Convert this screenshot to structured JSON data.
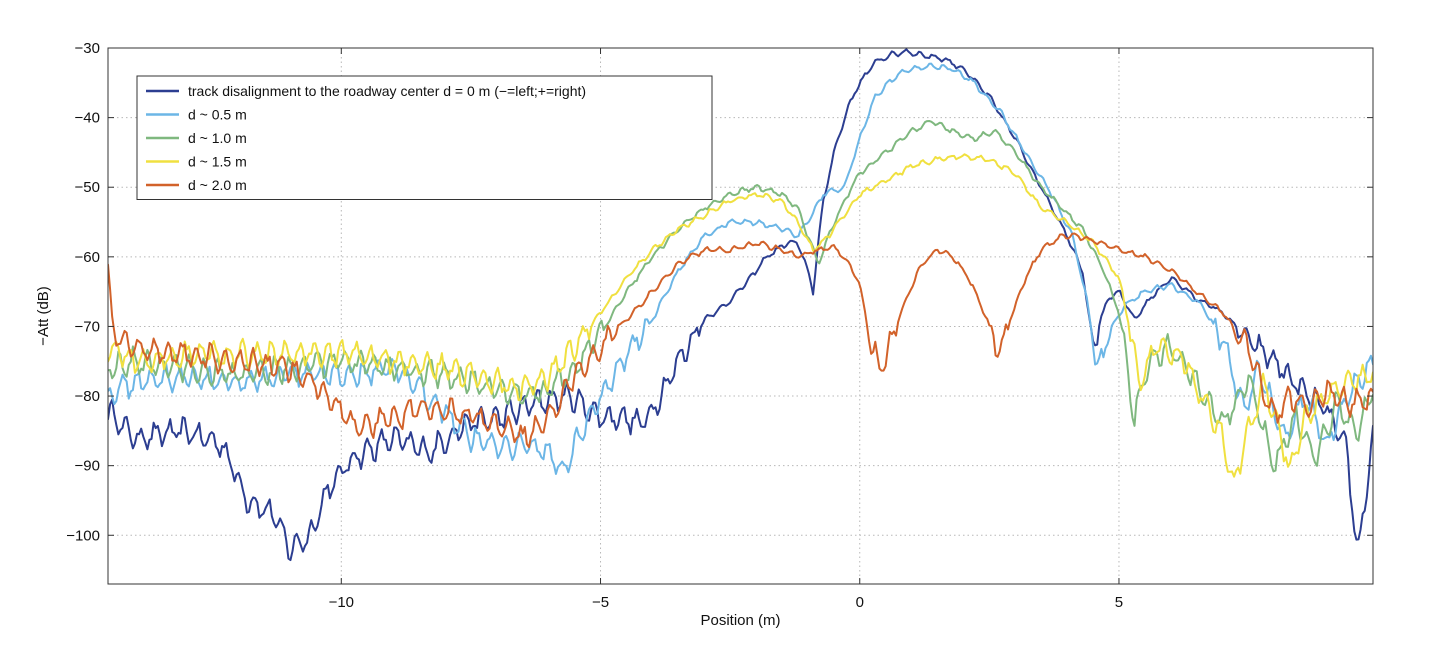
{
  "chart_data": {
    "type": "line",
    "title": "",
    "xlabel": "Position (m)",
    "ylabel": "−Att (dB)",
    "xlim": [
      -14.5,
      9.9
    ],
    "ylim": [
      -107,
      -30
    ],
    "xticks": [
      -10,
      -5,
      0,
      5
    ],
    "yticks": [
      -30,
      -40,
      -50,
      -60,
      -70,
      -80,
      -90,
      -100
    ],
    "xtick_labels": [
      "−10",
      "−5",
      "0",
      "5"
    ],
    "ytick_labels": [
      "−30",
      "−40",
      "−50",
      "−60",
      "−70",
      "−80",
      "−90",
      "−100"
    ],
    "grid": true,
    "legend_position": "top-left",
    "series": [
      {
        "name": "track disalignment to the roadway center  d = 0 m (−=left;+=right)",
        "color": "#2c3e91",
        "points": [
          [
            -14.5,
            -82
          ],
          [
            -14,
            -86
          ],
          [
            -13,
            -85
          ],
          [
            -12.3,
            -87
          ],
          [
            -11.8,
            -95
          ],
          [
            -11.3,
            -97
          ],
          [
            -11,
            -102
          ],
          [
            -10.6,
            -100
          ],
          [
            -10.3,
            -94
          ],
          [
            -9.8,
            -89
          ],
          [
            -9,
            -86
          ],
          [
            -8.3,
            -88
          ],
          [
            -7.6,
            -84
          ],
          [
            -6.9,
            -83
          ],
          [
            -6.3,
            -81
          ],
          [
            -5.6,
            -80
          ],
          [
            -5,
            -83
          ],
          [
            -4.6,
            -83
          ],
          [
            -4.2,
            -84
          ],
          [
            -4,
            -82
          ],
          [
            -3.5,
            -75
          ],
          [
            -3,
            -69
          ],
          [
            -2.6,
            -67
          ],
          [
            -2.1,
            -63
          ],
          [
            -1.8,
            -60
          ],
          [
            -1.4,
            -58
          ],
          [
            -1.2,
            -58
          ],
          [
            -1,
            -62
          ],
          [
            -0.9,
            -65
          ],
          [
            -0.8,
            -58
          ],
          [
            -0.7,
            -52
          ],
          [
            -0.5,
            -45
          ],
          [
            -0.2,
            -38
          ],
          [
            0,
            -35
          ],
          [
            0.3,
            -32
          ],
          [
            0.6,
            -31
          ],
          [
            0.9,
            -30.5
          ],
          [
            1.2,
            -31
          ],
          [
            1.6,
            -31.5
          ],
          [
            2,
            -33
          ],
          [
            2.5,
            -37
          ],
          [
            3,
            -43
          ],
          [
            3.5,
            -50
          ],
          [
            4,
            -57
          ],
          [
            4.3,
            -62
          ],
          [
            4.5,
            -73
          ],
          [
            4.6,
            -70
          ],
          [
            4.8,
            -66
          ],
          [
            5,
            -65
          ],
          [
            5.3,
            -69
          ],
          [
            5.6,
            -66
          ],
          [
            6,
            -63
          ],
          [
            6.5,
            -66
          ],
          [
            7,
            -68
          ],
          [
            7.5,
            -72
          ],
          [
            8,
            -75
          ],
          [
            8.5,
            -79
          ],
          [
            9,
            -82
          ],
          [
            9.4,
            -88
          ],
          [
            9.6,
            -103
          ],
          [
            9.9,
            -86
          ]
        ]
      },
      {
        "name": "d ~ 0.5 m",
        "color": "#6cb6e6",
        "points": [
          [
            -14.5,
            -80
          ],
          [
            -14,
            -78
          ],
          [
            -13,
            -77
          ],
          [
            -12,
            -78
          ],
          [
            -11,
            -77
          ],
          [
            -10,
            -77
          ],
          [
            -9,
            -76
          ],
          [
            -8.5,
            -79
          ],
          [
            -8,
            -82
          ],
          [
            -7.5,
            -86
          ],
          [
            -7,
            -87
          ],
          [
            -6.5,
            -87
          ],
          [
            -6,
            -88
          ],
          [
            -5.7,
            -91
          ],
          [
            -5.5,
            -87
          ],
          [
            -5,
            -80
          ],
          [
            -4.5,
            -74
          ],
          [
            -4,
            -69
          ],
          [
            -3.5,
            -62
          ],
          [
            -3,
            -57
          ],
          [
            -2.5,
            -55
          ],
          [
            -2,
            -55
          ],
          [
            -1.5,
            -56
          ],
          [
            -1.2,
            -57
          ],
          [
            -1,
            -55
          ],
          [
            -0.7,
            -51
          ],
          [
            -0.3,
            -50
          ],
          [
            0,
            -43
          ],
          [
            0.3,
            -37
          ],
          [
            0.7,
            -34
          ],
          [
            1,
            -33
          ],
          [
            1.4,
            -32.5
          ],
          [
            1.8,
            -33
          ],
          [
            2.2,
            -35
          ],
          [
            2.7,
            -39
          ],
          [
            3.2,
            -45
          ],
          [
            3.7,
            -51
          ],
          [
            4.1,
            -57
          ],
          [
            4.4,
            -67
          ],
          [
            4.6,
            -77
          ],
          [
            4.8,
            -71
          ],
          [
            5.1,
            -67
          ],
          [
            5.5,
            -65
          ],
          [
            6,
            -64
          ],
          [
            6.6,
            -67
          ],
          [
            7,
            -72
          ],
          [
            7.4,
            -82
          ],
          [
            7.7,
            -76
          ],
          [
            8.2,
            -86
          ],
          [
            8.6,
            -80
          ],
          [
            9,
            -87
          ],
          [
            9.4,
            -80
          ],
          [
            9.9,
            -75
          ]
        ]
      },
      {
        "name": "d ~ 1.0 m",
        "color": "#7fb87f",
        "points": [
          [
            -14.5,
            -76
          ],
          [
            -14,
            -75
          ],
          [
            -13,
            -76
          ],
          [
            -12,
            -77
          ],
          [
            -11,
            -76
          ],
          [
            -10,
            -75
          ],
          [
            -9,
            -76
          ],
          [
            -8,
            -77
          ],
          [
            -7,
            -79
          ],
          [
            -6.5,
            -80
          ],
          [
            -6,
            -79
          ],
          [
            -5.5,
            -76
          ],
          [
            -5,
            -71
          ],
          [
            -4.5,
            -65
          ],
          [
            -4,
            -60
          ],
          [
            -3.5,
            -56
          ],
          [
            -3,
            -53
          ],
          [
            -2.5,
            -51
          ],
          [
            -2,
            -50
          ],
          [
            -1.5,
            -51
          ],
          [
            -1.2,
            -53
          ],
          [
            -1,
            -57
          ],
          [
            -0.8,
            -61
          ],
          [
            -0.6,
            -57
          ],
          [
            -0.3,
            -52
          ],
          [
            0,
            -48
          ],
          [
            0.5,
            -45
          ],
          [
            1,
            -42
          ],
          [
            1.4,
            -40.5
          ],
          [
            1.8,
            -42
          ],
          [
            2.2,
            -43
          ],
          [
            2.6,
            -42
          ],
          [
            3,
            -45
          ],
          [
            3.5,
            -50
          ],
          [
            3.9,
            -53
          ],
          [
            4.3,
            -56
          ],
          [
            4.7,
            -62
          ],
          [
            5,
            -68
          ],
          [
            5.3,
            -83
          ],
          [
            5.6,
            -75
          ],
          [
            6,
            -73
          ],
          [
            6.5,
            -78
          ],
          [
            7,
            -84
          ],
          [
            7.5,
            -77
          ],
          [
            8,
            -90
          ],
          [
            8.4,
            -83
          ],
          [
            8.8,
            -89
          ],
          [
            9.2,
            -81
          ],
          [
            9.6,
            -85
          ],
          [
            9.9,
            -79
          ]
        ]
      },
      {
        "name": "d ~ 1.5 m",
        "color": "#f0e040",
        "points": [
          [
            -14.5,
            -73
          ],
          [
            -14,
            -75
          ],
          [
            -13,
            -74
          ],
          [
            -12,
            -74
          ],
          [
            -11,
            -74
          ],
          [
            -10,
            -74
          ],
          [
            -9,
            -75
          ],
          [
            -8,
            -76
          ],
          [
            -7,
            -78
          ],
          [
            -6.4,
            -79
          ],
          [
            -6,
            -77
          ],
          [
            -5.5,
            -73
          ],
          [
            -5,
            -68
          ],
          [
            -4.5,
            -63
          ],
          [
            -4,
            -59
          ],
          [
            -3.5,
            -56
          ],
          [
            -3,
            -54
          ],
          [
            -2.5,
            -52
          ],
          [
            -2,
            -51
          ],
          [
            -1.5,
            -52
          ],
          [
            -1.2,
            -55
          ],
          [
            -0.9,
            -59
          ],
          [
            -0.6,
            -57
          ],
          [
            -0.3,
            -54
          ],
          [
            0,
            -51
          ],
          [
            0.5,
            -49
          ],
          [
            1,
            -47
          ],
          [
            1.5,
            -46
          ],
          [
            2,
            -45.5
          ],
          [
            2.5,
            -46
          ],
          [
            3,
            -48
          ],
          [
            3.5,
            -53
          ],
          [
            4,
            -55
          ],
          [
            4.5,
            -58
          ],
          [
            5,
            -63
          ],
          [
            5.2,
            -70
          ],
          [
            5.4,
            -78
          ],
          [
            5.7,
            -73
          ],
          [
            6.2,
            -74
          ],
          [
            6.6,
            -80
          ],
          [
            7,
            -86
          ],
          [
            7.2,
            -93
          ],
          [
            7.5,
            -85
          ],
          [
            7.8,
            -78
          ],
          [
            8.1,
            -85
          ],
          [
            8.3,
            -91
          ],
          [
            8.6,
            -83
          ],
          [
            9,
            -80
          ],
          [
            9.4,
            -78
          ],
          [
            9.9,
            -77
          ]
        ]
      },
      {
        "name": "d ~ 2.0 m",
        "color": "#d2622a",
        "points": [
          [
            -14.5,
            -61
          ],
          [
            -14.4,
            -71
          ],
          [
            -14,
            -73
          ],
          [
            -13,
            -74
          ],
          [
            -12,
            -75
          ],
          [
            -11,
            -76
          ],
          [
            -10.5,
            -78
          ],
          [
            -10,
            -82
          ],
          [
            -9.7,
            -85
          ],
          [
            -9.4,
            -84
          ],
          [
            -9,
            -83
          ],
          [
            -8.5,
            -82
          ],
          [
            -8,
            -82
          ],
          [
            -7.5,
            -83
          ],
          [
            -7,
            -84
          ],
          [
            -6.5,
            -86
          ],
          [
            -6,
            -83
          ],
          [
            -5.5,
            -77
          ],
          [
            -5,
            -73
          ],
          [
            -4.5,
            -69
          ],
          [
            -4,
            -65
          ],
          [
            -3.5,
            -61
          ],
          [
            -3,
            -59
          ],
          [
            -2.5,
            -59
          ],
          [
            -2,
            -58
          ],
          [
            -1.5,
            -59
          ],
          [
            -1.2,
            -60
          ],
          [
            -0.8,
            -59
          ],
          [
            -0.5,
            -58.5
          ],
          [
            -0.2,
            -61
          ],
          [
            0,
            -64
          ],
          [
            0.2,
            -72
          ],
          [
            0.4,
            -76.5
          ],
          [
            0.6,
            -72
          ],
          [
            0.9,
            -66
          ],
          [
            1.2,
            -61
          ],
          [
            1.5,
            -59
          ],
          [
            1.8,
            -60
          ],
          [
            2.1,
            -63
          ],
          [
            2.4,
            -68
          ],
          [
            2.7,
            -74
          ],
          [
            2.9,
            -69
          ],
          [
            3.2,
            -63
          ],
          [
            3.5,
            -59
          ],
          [
            3.9,
            -57
          ],
          [
            4.2,
            -57
          ],
          [
            4.6,
            -58
          ],
          [
            5,
            -59
          ],
          [
            5.5,
            -60
          ],
          [
            6,
            -62
          ],
          [
            6.5,
            -65
          ],
          [
            7,
            -68
          ],
          [
            7.5,
            -73
          ],
          [
            7.8,
            -80
          ],
          [
            8,
            -83
          ],
          [
            8.3,
            -80
          ],
          [
            8.6,
            -82
          ],
          [
            9,
            -79
          ],
          [
            9.4,
            -81
          ],
          [
            9.9,
            -80
          ]
        ]
      }
    ]
  }
}
